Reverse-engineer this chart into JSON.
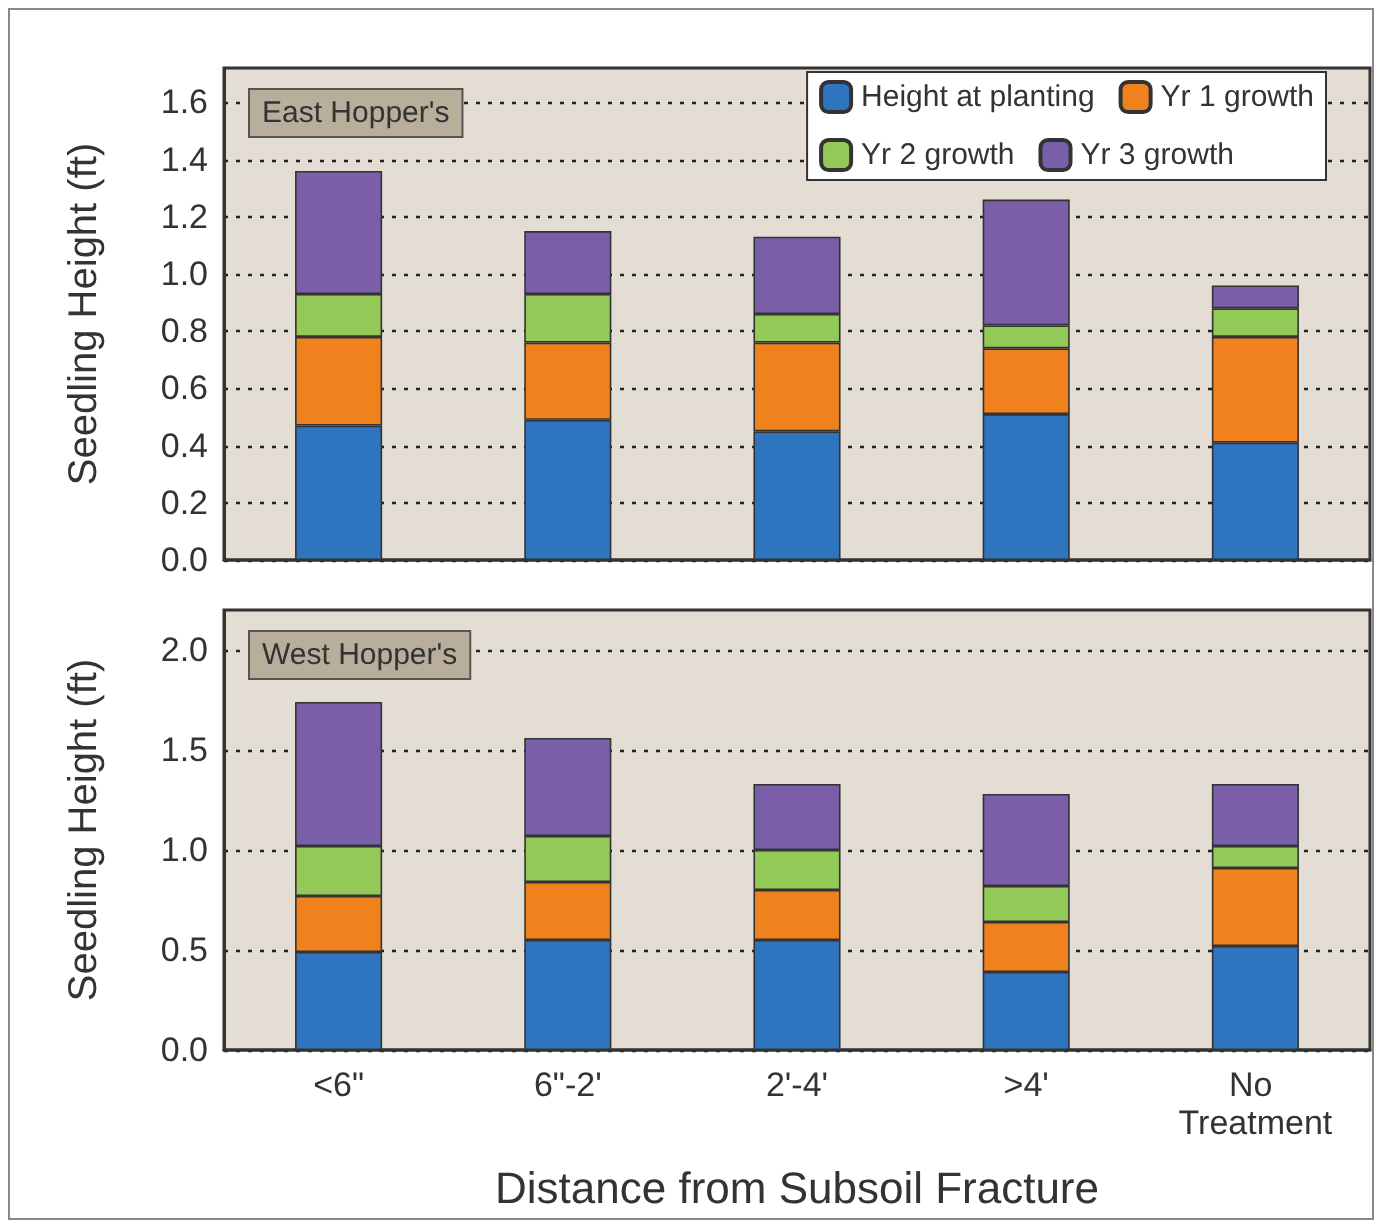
{
  "chart_data": [
    {
      "type": "bar",
      "stacked": true,
      "ylabel": "Seedling Height (ft)",
      "annotations": [
        "East Hopper's"
      ],
      "categories": [
        "<6\"",
        "6\"-2'",
        "2'-4'",
        ">4'",
        "No Treatment"
      ],
      "ylim": [
        0,
        1.72
      ],
      "yticks": [
        {
          "value": 0,
          "label": "0.0"
        },
        0.2,
        0.4,
        0.6,
        0.8,
        {
          "value": 1,
          "label": "1.0"
        },
        1.2,
        1.4,
        1.6
      ],
      "grid": "y",
      "legend": "top right",
      "tick_labels": "y",
      "series": [
        {
          "name": "Height at planting",
          "color": "#2e74bf",
          "values": [
            0.47,
            0.49,
            0.45,
            0.51,
            0.41
          ]
        },
        {
          "name": "Yr 1 growth",
          "color": "#f0821e",
          "values": [
            0.31,
            0.27,
            0.31,
            0.23,
            0.37
          ]
        },
        {
          "name": "Yr 2 growth",
          "color": "#92c957",
          "values": [
            0.15,
            0.17,
            0.1,
            0.08,
            0.1
          ]
        },
        {
          "name": "Yr 3 growth",
          "color": "#7a5fa8",
          "values": [
            0.43,
            0.22,
            0.27,
            0.44,
            0.08
          ]
        }
      ]
    },
    {
      "type": "bar",
      "stacked": true,
      "ylabel": "Seedling Height (ft)",
      "xlabel": "Distance from Subsoil Fracture",
      "annotations": [
        "West Hopper's"
      ],
      "categories": [
        "<6\"",
        "6\"-2'",
        "2'-4'",
        ">4'",
        "No Treatment"
      ],
      "ylim": [
        0,
        2.2
      ],
      "yticks": [
        {
          "value": 0,
          "label": "0.0"
        },
        0.5,
        {
          "value": 1,
          "label": "1.0"
        },
        1.5,
        {
          "value": 2,
          "label": "2.0"
        }
      ],
      "grid": "y",
      "series": [
        {
          "color": "#2e74bf",
          "values": [
            0.49,
            0.55,
            0.55,
            0.39,
            0.52
          ]
        },
        {
          "color": "#f0821e",
          "values": [
            0.28,
            0.29,
            0.25,
            0.25,
            0.39
          ]
        },
        {
          "color": "#92c957",
          "values": [
            0.25,
            0.23,
            0.2,
            0.18,
            0.11
          ]
        },
        {
          "color": "#7a5fa8",
          "values": [
            0.72,
            0.49,
            0.33,
            0.46,
            0.31
          ]
        }
      ]
    }
  ]
}
